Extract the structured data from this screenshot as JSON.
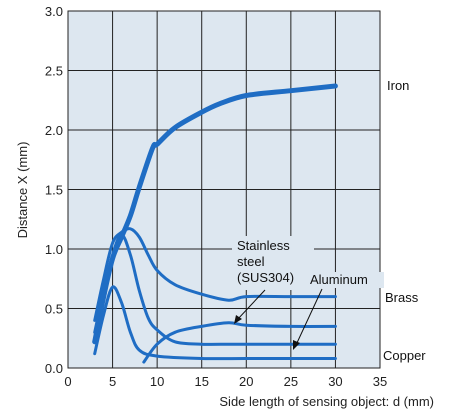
{
  "chart_data": {
    "type": "line",
    "xlabel": "Side length of sensing object: d (mm)",
    "ylabel": "Distance X (mm)",
    "xlim": [
      0,
      35
    ],
    "ylim": [
      0,
      3.0
    ],
    "x_ticks": [
      "0",
      "5",
      "10",
      "15",
      "20",
      "25",
      "30",
      "35"
    ],
    "y_ticks": [
      "0.0",
      "0.5",
      "1.0",
      "1.5",
      "2.0",
      "2.5",
      "3.0"
    ],
    "grid": true,
    "line_color": "#1f6dc4",
    "background": "#dde7f0",
    "series": [
      {
        "name": "Iron",
        "emphasis": "bold",
        "x": [
          3,
          4,
          5,
          6,
          7,
          8,
          9.5,
          10,
          12,
          15,
          17,
          20,
          25,
          30
        ],
        "y": [
          0.22,
          0.6,
          0.92,
          1.1,
          1.28,
          1.52,
          1.85,
          1.88,
          2.02,
          2.15,
          2.22,
          2.29,
          2.33,
          2.37
        ]
      },
      {
        "name": "Brass",
        "x": [
          3,
          4,
          5,
          6,
          7,
          8,
          9,
          10,
          12,
          15,
          18,
          20,
          25,
          30
        ],
        "y": [
          0.4,
          0.75,
          1.05,
          1.14,
          1.17,
          1.1,
          0.95,
          0.82,
          0.7,
          0.62,
          0.57,
          0.6,
          0.6,
          0.6
        ]
      },
      {
        "name": "Stainless steel (SUS304)",
        "x": [
          3,
          4,
          5,
          6,
          7,
          8,
          9,
          10,
          12,
          15,
          18,
          20,
          25,
          30
        ],
        "y": [
          0.3,
          0.65,
          0.95,
          1.12,
          0.95,
          0.65,
          0.42,
          0.32,
          0.22,
          0.2,
          0.2,
          0.2,
          0.2,
          0.2
        ]
      },
      {
        "name": "Aluminum",
        "x": [
          8.5,
          10,
          12,
          15,
          18,
          20,
          25,
          30
        ],
        "y": [
          0.05,
          0.2,
          0.3,
          0.35,
          0.38,
          0.36,
          0.35,
          0.35
        ]
      },
      {
        "name": "Copper",
        "x": [
          3,
          4,
          5,
          6,
          7,
          8,
          10,
          15,
          20,
          25,
          30
        ],
        "y": [
          0.12,
          0.45,
          0.68,
          0.55,
          0.3,
          0.15,
          0.1,
          0.08,
          0.08,
          0.08,
          0.08
        ]
      }
    ],
    "labels": {
      "iron": "Iron",
      "brass": "Brass",
      "copper": "Copper",
      "stainless_line1": "Stainless",
      "stainless_line2": "steel",
      "stainless_line3": "(SUS304)",
      "aluminum": "Aluminum"
    }
  }
}
